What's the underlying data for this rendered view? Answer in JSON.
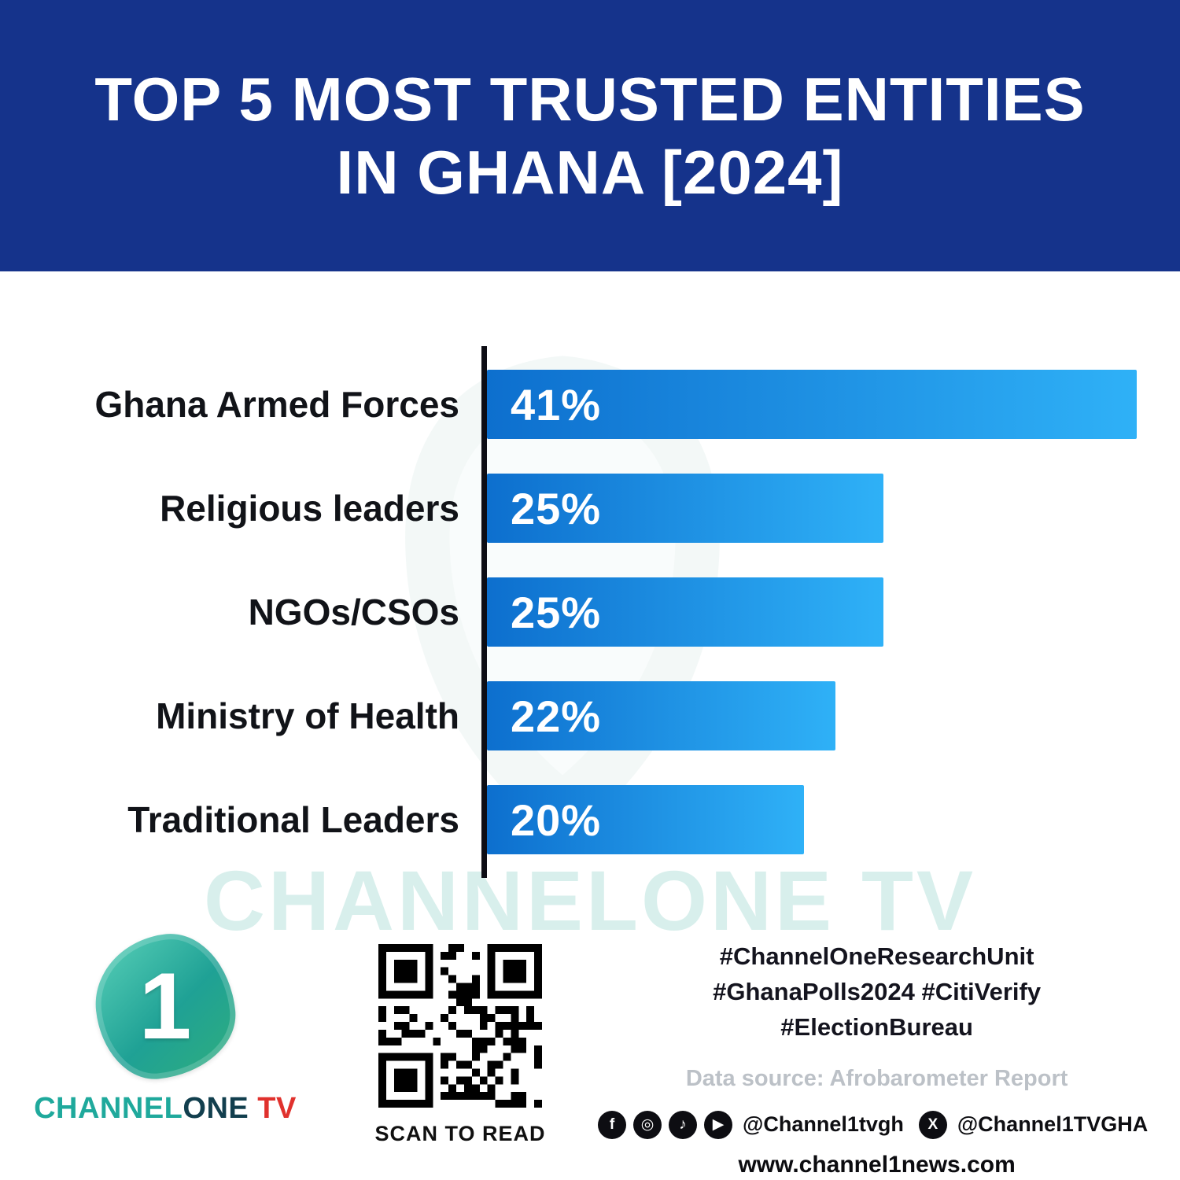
{
  "title": "TOP 5 MOST TRUSTED ENTITIES\nIN GHANA [2024]",
  "chart_data": {
    "type": "bar",
    "orientation": "horizontal",
    "title": "TOP 5 MOST TRUSTED ENTITIES IN GHANA [2024]",
    "categories": [
      "Ghana Armed Forces",
      "Religious leaders",
      "NGOs/CSOs",
      "Ministry of Health",
      "Traditional Leaders"
    ],
    "values": [
      41,
      25,
      25,
      22,
      20
    ],
    "value_labels": [
      "41%",
      "25%",
      "25%",
      "22%",
      "20%"
    ],
    "xlabel": "",
    "ylabel": "",
    "xlim": [
      0,
      41
    ],
    "grid": false,
    "legend": "none",
    "bar_color_start": "#0d6fce",
    "bar_color_end": "#2fb1f7"
  },
  "watermark": "CHANNELONE TV",
  "footer": {
    "logo": {
      "digit": "1",
      "channel": "CHANNEL",
      "one": "ONE",
      "tv": " TV"
    },
    "qr_caption": "SCAN TO READ",
    "hashtags": [
      "#ChannelOneResearchUnit",
      "#GhanaPolls2024 #CitiVerify",
      "#ElectionBureau"
    ],
    "data_source": "Data source: Afrobarometer Report",
    "social_icons": [
      "facebook",
      "instagram",
      "tiktok",
      "youtube"
    ],
    "social_handle_1": "@Channel1tvgh",
    "x_icon": "x",
    "social_handle_2": "@Channel1TVGHA",
    "website": "www.channel1news.com"
  },
  "colors": {
    "banner_blue": "#15338b",
    "bar_gradient_start": "#0d6fce",
    "bar_gradient_end": "#2fb1f7",
    "watermark_teal": "#d8efec",
    "logo_teal": "#1fa99c",
    "logo_red": "#e0312d",
    "text_black": "#111318",
    "source_gray": "#bcc1c7"
  }
}
